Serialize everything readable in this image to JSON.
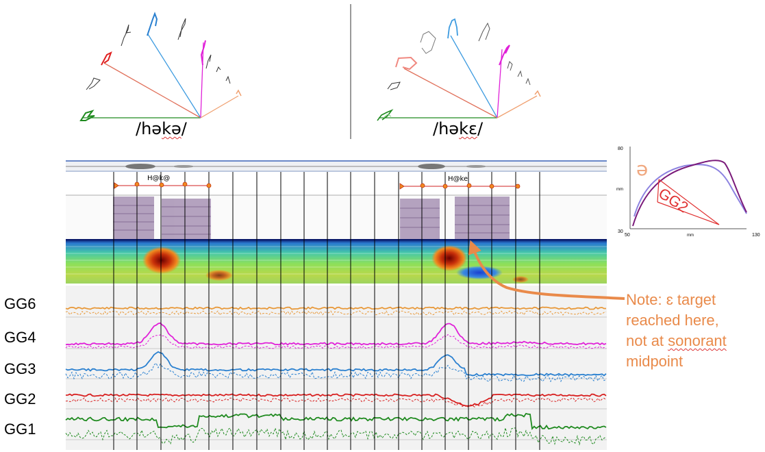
{
  "fan_plots": [
    {
      "transcription_pre": "/h",
      "transcription_mid": "ə",
      "transcription_k": "k",
      "transcription_vowel": "ə",
      "transcription_post": "/"
    },
    {
      "transcription_pre": "/h",
      "transcription_mid": "ə",
      "transcription_k": "k",
      "transcription_vowel": "ɛ",
      "transcription_post": "/"
    }
  ],
  "segment_labels": [
    "H@k@",
    "H@ke"
  ],
  "channels": [
    "GG6",
    "GG4",
    "GG3",
    "GG2",
    "GG1"
  ],
  "channel_colors": {
    "GG6": "#E8993A",
    "GG4": "#E020D8",
    "GG3": "#2A80D0",
    "GG2": "#D82020",
    "GG1": "#1F8A1F"
  },
  "inset": {
    "y_top": "80",
    "y_bottom": "30",
    "x_left": "50",
    "x_right": "130",
    "axis_unit_x": "mm",
    "axis_unit_y": "mm",
    "vowel_label": "ə",
    "gg_label": "GG2"
  },
  "note": {
    "line1": "Note: ɛ target",
    "line2": "reached here,",
    "line3_pre": "not at ",
    "line3_underlined": "sonorant",
    "line4": "midpoint",
    "color": "#E98A4A"
  }
}
